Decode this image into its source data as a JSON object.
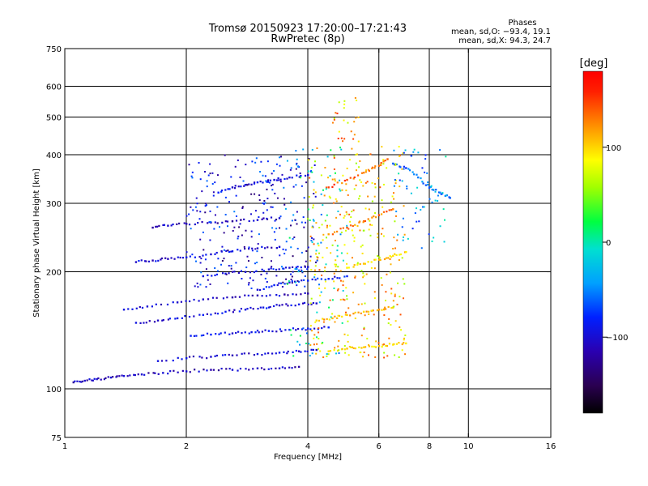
{
  "title_line1": "Tromsø 20150923 17:20:00–17:21:43",
  "title_line2": "RwPretec (8p)",
  "stats": {
    "heading": "Phases",
    "line_o": "mean, sd,O: −93.4, 19.1",
    "line_x": "mean, sd,X:  94.3, 24.7"
  },
  "colorbar": {
    "label": "[deg]",
    "ticks": [
      {
        "value": 100,
        "label": "100"
      },
      {
        "value": 0,
        "label": "0"
      },
      {
        "value": -100,
        "label": "−100"
      }
    ],
    "range": [
      -180,
      180
    ]
  },
  "chart_data": {
    "type": "scatter",
    "title": "Tromsø 20150923 17:20:00–17:21:43",
    "subtitle": "RwPretec (8p)",
    "xlabel": "Frequency [MHz]",
    "ylabel": "Stationary phase Virtual Height [km]",
    "xscale": "log",
    "yscale": "log",
    "xlim": [
      1,
      16
    ],
    "ylim": [
      75,
      750
    ],
    "grid": true,
    "x_ticks": [
      {
        "value": 1,
        "label": "1"
      },
      {
        "value": 2,
        "label": "2"
      },
      {
        "value": 4,
        "label": "4"
      },
      {
        "value": 6,
        "label": "6"
      },
      {
        "value": 8,
        "label": "8"
      },
      {
        "value": 10,
        "label": "10"
      },
      {
        "value": 16,
        "label": "16"
      }
    ],
    "x_grid": [
      2,
      4,
      6,
      8,
      10
    ],
    "y_ticks": [
      {
        "value": 75,
        "label": "75"
      },
      {
        "value": 100,
        "label": "100"
      },
      {
        "value": 200,
        "label": "200"
      },
      {
        "value": 300,
        "label": "300"
      },
      {
        "value": 400,
        "label": "400"
      },
      {
        "value": 500,
        "label": "500"
      },
      {
        "value": 600,
        "label": "600"
      },
      {
        "value": 750,
        "label": "750"
      }
    ],
    "y_grid": [
      100,
      200,
      300,
      400,
      500,
      600
    ],
    "color_scale": "phase (deg)",
    "traces": [
      {
        "phase": -110,
        "points": [
          [
            1.05,
            104
          ],
          [
            1.12,
            105
          ],
          [
            1.2,
            106
          ],
          [
            1.3,
            107
          ],
          [
            1.4,
            108
          ],
          [
            1.55,
            109
          ],
          [
            1.75,
            110
          ],
          [
            2.0,
            111
          ],
          [
            2.3,
            112
          ],
          [
            2.6,
            112
          ],
          [
            3.0,
            113
          ],
          [
            3.4,
            113
          ],
          [
            3.8,
            114
          ]
        ]
      },
      {
        "phase": -100,
        "points": [
          [
            1.7,
            118
          ],
          [
            2.0,
            120
          ],
          [
            2.3,
            121
          ],
          [
            2.6,
            122
          ],
          [
            3.0,
            123
          ],
          [
            3.4,
            124
          ],
          [
            3.8,
            125
          ],
          [
            4.2,
            126
          ]
        ]
      },
      {
        "phase": -95,
        "points": [
          [
            1.5,
            148
          ],
          [
            1.7,
            150
          ],
          [
            1.9,
            152
          ],
          [
            2.2,
            155
          ],
          [
            2.5,
            158
          ],
          [
            2.8,
            160
          ],
          [
            3.1,
            162
          ],
          [
            3.4,
            164
          ],
          [
            3.8,
            165
          ],
          [
            4.2,
            166
          ]
        ]
      },
      {
        "phase": -105,
        "points": [
          [
            1.4,
            160
          ],
          [
            1.6,
            163
          ],
          [
            1.9,
            167
          ],
          [
            2.2,
            170
          ],
          [
            2.6,
            172
          ],
          [
            3.0,
            174
          ],
          [
            3.5,
            175
          ],
          [
            4.0,
            176
          ]
        ]
      },
      {
        "phase": -90,
        "points": [
          [
            2.05,
            137
          ],
          [
            2.3,
            138
          ],
          [
            2.6,
            139
          ],
          [
            2.9,
            140
          ],
          [
            3.2,
            141
          ],
          [
            3.6,
            142
          ],
          [
            4.0,
            143
          ],
          [
            4.5,
            144
          ]
        ]
      },
      {
        "phase": -100,
        "points": [
          [
            1.5,
            212
          ],
          [
            1.65,
            214
          ],
          [
            1.8,
            216
          ],
          [
            2.0,
            218
          ],
          [
            2.3,
            222
          ],
          [
            2.6,
            226
          ],
          [
            3.0,
            230
          ],
          [
            3.4,
            232
          ]
        ]
      },
      {
        "phase": -110,
        "points": [
          [
            1.65,
            260
          ],
          [
            1.8,
            263
          ],
          [
            2.0,
            266
          ],
          [
            2.3,
            268
          ],
          [
            2.6,
            270
          ],
          [
            3.0,
            272
          ],
          [
            3.4,
            275
          ]
        ]
      },
      {
        "phase": -90,
        "points": [
          [
            2.4,
            320
          ],
          [
            2.6,
            330
          ],
          [
            2.8,
            335
          ],
          [
            3.0,
            340
          ],
          [
            3.3,
            345
          ],
          [
            3.6,
            350
          ],
          [
            4.0,
            355
          ]
        ]
      },
      {
        "phase": -85,
        "points": [
          [
            3.0,
            180
          ],
          [
            3.3,
            185
          ],
          [
            3.6,
            188
          ],
          [
            4.0,
            190
          ],
          [
            4.5,
            192
          ],
          [
            5.0,
            195
          ]
        ]
      },
      {
        "phase": -95,
        "points": [
          [
            2.2,
            195
          ],
          [
            2.5,
            198
          ],
          [
            2.8,
            200
          ],
          [
            3.2,
            203
          ],
          [
            3.6,
            205
          ],
          [
            4.0,
            206
          ]
        ]
      },
      {
        "phase": 110,
        "points": [
          [
            4.2,
            150
          ],
          [
            4.6,
            152
          ],
          [
            5.0,
            155
          ],
          [
            5.5,
            158
          ],
          [
            6.0,
            160
          ],
          [
            6.5,
            162
          ]
        ]
      },
      {
        "phase": 95,
        "points": [
          [
            4.5,
            125
          ],
          [
            5.0,
            127
          ],
          [
            5.5,
            128
          ],
          [
            6.0,
            129
          ],
          [
            6.5,
            130
          ],
          [
            7.0,
            131
          ]
        ]
      },
      {
        "phase": 130,
        "points": [
          [
            4.5,
            250
          ],
          [
            5.0,
            260
          ],
          [
            5.5,
            270
          ],
          [
            6.0,
            280
          ],
          [
            6.5,
            290
          ]
        ]
      },
      {
        "phase": 140,
        "points": [
          [
            4.5,
            330
          ],
          [
            5.0,
            345
          ],
          [
            5.5,
            360
          ],
          [
            6.0,
            375
          ],
          [
            6.3,
            390
          ]
        ]
      },
      {
        "phase": 100,
        "points": [
          [
            5.0,
            205
          ],
          [
            5.5,
            210
          ],
          [
            6.0,
            215
          ],
          [
            6.5,
            220
          ],
          [
            7.0,
            225
          ]
        ]
      },
      {
        "phase": -60,
        "points": [
          [
            6.5,
            380
          ],
          [
            7.0,
            370
          ],
          [
            7.5,
            350
          ],
          [
            8.0,
            330
          ],
          [
            8.5,
            320
          ],
          [
            9.0,
            310
          ]
        ]
      }
    ]
  }
}
